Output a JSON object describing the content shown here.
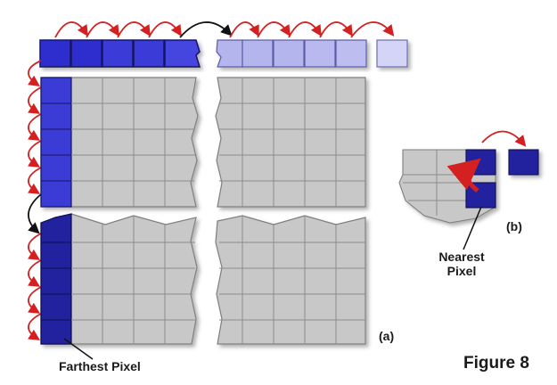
{
  "labels": {
    "panel_a": "(a)",
    "panel_b": "(b)",
    "farthest_pixel": "Farthest Pixel",
    "nearest_pixel_line1": "Nearest",
    "nearest_pixel_line2": "Pixel",
    "figure": "Figure 8"
  },
  "colors": {
    "grid_gray": "#c8c8c8",
    "grid_line": "#8c8c8c",
    "blue_dark": "#1d1d8c",
    "blue_mid": "#2f2fcf",
    "blue_light": "#b5b5ee",
    "blue_pale": "#d4d4f6",
    "arrow_red": "#d42020",
    "arrow_black": "#111111"
  }
}
